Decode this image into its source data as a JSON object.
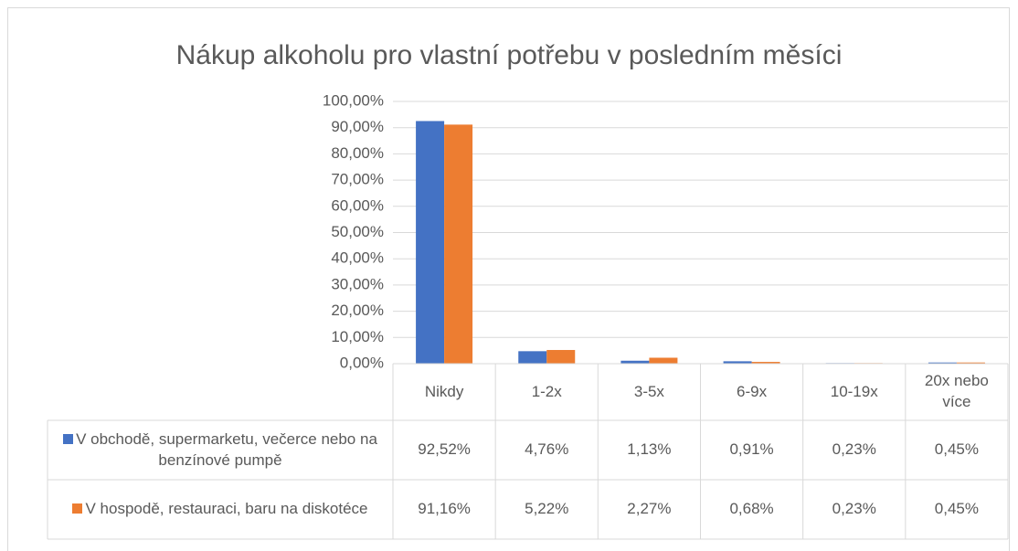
{
  "chart_data": {
    "type": "bar",
    "title": "Nákup alkoholu pro vlastní potřebu v posledním měsíci",
    "categories": [
      "Nikdy",
      "1-2x",
      "3-5x",
      "6-9x",
      "10-19x",
      "20x nebo více"
    ],
    "series": [
      {
        "name": "V obchodě, supermarketu, večerce nebo na benzínové pumpě",
        "color": "#4472c4",
        "values": [
          92.52,
          4.76,
          1.13,
          0.91,
          0.23,
          0.45
        ],
        "value_labels": [
          "92,52%",
          "4,76%",
          "1,13%",
          "0,91%",
          "0,23%",
          "0,45%"
        ]
      },
      {
        "name": "V hospodě, restauraci, baru na diskotéce",
        "color": "#ed7d31",
        "values": [
          91.16,
          5.22,
          2.27,
          0.68,
          0.23,
          0.45
        ],
        "value_labels": [
          "91,16%",
          "5,22%",
          "2,27%",
          "0,68%",
          "0,23%",
          "0,45%"
        ]
      }
    ],
    "ylim": [
      0,
      100
    ],
    "yticks": [
      {
        "value": 0,
        "label": "0,00%"
      },
      {
        "value": 10,
        "label": "10,00%"
      },
      {
        "value": 20,
        "label": "20,00%"
      },
      {
        "value": 30,
        "label": "30,00%"
      },
      {
        "value": 40,
        "label": "40,00%"
      },
      {
        "value": 50,
        "label": "50,00%"
      },
      {
        "value": 60,
        "label": "60,00%"
      },
      {
        "value": 70,
        "label": "70,00%"
      },
      {
        "value": 80,
        "label": "80,00%"
      },
      {
        "value": 90,
        "label": "90,00%"
      },
      {
        "value": 100,
        "label": "100,00%"
      }
    ],
    "grid": true,
    "data_table": true
  }
}
